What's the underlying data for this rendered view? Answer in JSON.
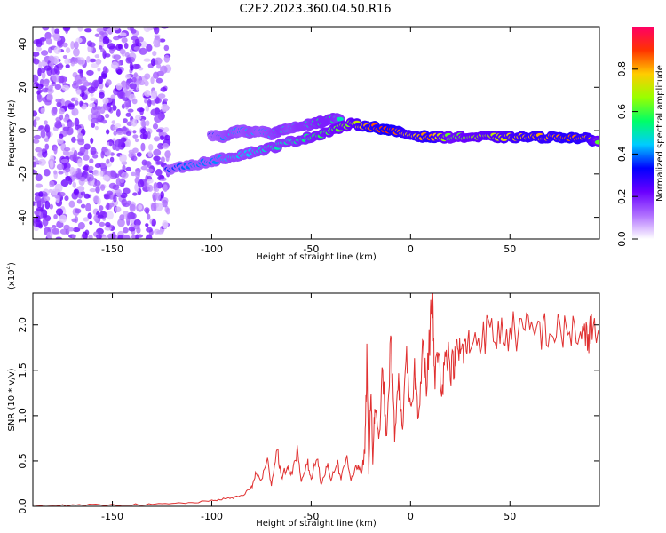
{
  "title": "C2E2.2023.360.04.50.R16",
  "chart_data": [
    {
      "type": "heatmap",
      "name": "spectrogram",
      "xlabel": "Height of straight line (km)",
      "ylabel": "Frequency (Hz)",
      "xlim": [
        -190,
        95
      ],
      "ylim": [
        -50,
        48
      ],
      "xticks": [
        -150,
        -100,
        -50,
        0,
        50
      ],
      "yticks": [
        -40,
        -20,
        0,
        20,
        40
      ],
      "colorbar": {
        "label": "Normalized spectral amplitude",
        "range": [
          0,
          1
        ],
        "ticks": [
          0.0,
          0.2,
          0.4,
          0.6,
          0.8
        ],
        "colors": [
          "#ffffff",
          "#b070ff",
          "#6a00ff",
          "#0000ff",
          "#00ccff",
          "#00ff66",
          "#99ff00",
          "#ffcc00",
          "#ff3300",
          "#ff0066"
        ]
      },
      "ridge": {
        "x": [
          -122,
          -110,
          -100,
          -90,
          -80,
          -70,
          -60,
          -50,
          -40,
          -30,
          -20,
          -10,
          0,
          10,
          20,
          30,
          40,
          50,
          60,
          70,
          80,
          90,
          95
        ],
        "y": [
          -18,
          -16,
          -14,
          -12,
          -10,
          -8,
          -5,
          -3,
          0,
          3,
          2,
          0,
          -2,
          -3,
          -3,
          -3,
          -3,
          -3,
          -3,
          -3,
          -3,
          -4,
          -5
        ],
        "amplitude": [
          0.35,
          0.4,
          0.4,
          0.45,
          0.45,
          0.5,
          0.5,
          0.55,
          0.6,
          0.65,
          0.85,
          0.9,
          0.75,
          0.85,
          0.6,
          0.65,
          0.7,
          0.75,
          0.8,
          0.8,
          0.85,
          0.8,
          0.6
        ]
      },
      "upper_branch": {
        "x": [
          -100,
          -95,
          -90,
          -85,
          -80,
          -75,
          -70,
          -65,
          -60,
          -55,
          -50,
          -45,
          -40,
          -35
        ],
        "y": [
          -2,
          -3,
          -1,
          0,
          -1,
          0,
          -2,
          0,
          1,
          2,
          3,
          4,
          5,
          6
        ],
        "amplitude": [
          0.35,
          0.4,
          0.45,
          0.4,
          0.45,
          0.4,
          0.45,
          0.5,
          0.45,
          0.5,
          0.5,
          0.55,
          0.55,
          0.5
        ]
      },
      "noise_region": {
        "x_range": [
          -190,
          -122
        ],
        "y_range": [
          -50,
          48
        ],
        "amplitude": 0.12
      }
    },
    {
      "type": "line",
      "name": "snr",
      "xlabel": "Height of straight line (km)",
      "ylabel": "SNR (10 * v/v)",
      "y_multiplier_label": "(x10^4)",
      "xlim": [
        -190,
        95
      ],
      "ylim": [
        0,
        2.35
      ],
      "xticks": [
        -150,
        -100,
        -50,
        0,
        50
      ],
      "yticks": [
        0.0,
        0.5,
        1.0,
        1.5,
        2.0
      ],
      "line_color": "#e03030",
      "series": [
        {
          "x": [
            -190,
            -180,
            -170,
            -160,
            -150,
            -140,
            -130,
            -120,
            -110,
            -100,
            -95,
            -90,
            -85,
            -80,
            -78,
            -75,
            -72,
            -70,
            -67,
            -65,
            -62,
            -60,
            -57,
            -55,
            -52,
            -50,
            -47,
            -45,
            -42,
            -40,
            -37,
            -35,
            -32,
            -30,
            -27,
            -25,
            -23,
            -22,
            -21,
            -20,
            -19,
            -18,
            -16,
            -14,
            -12,
            -10,
            -8,
            -6,
            -4,
            -2,
            0,
            2,
            4,
            6,
            8,
            10,
            11,
            12,
            14,
            16,
            18,
            20,
            22,
            24,
            26,
            28,
            30,
            35,
            40,
            45,
            50,
            55,
            60,
            65,
            70,
            75,
            80,
            85,
            88,
            90,
            92,
            95
          ],
          "y": [
            0.01,
            0.01,
            0.01,
            0.015,
            0.015,
            0.02,
            0.02,
            0.03,
            0.04,
            0.06,
            0.08,
            0.09,
            0.12,
            0.2,
            0.35,
            0.3,
            0.5,
            0.25,
            0.65,
            0.3,
            0.45,
            0.35,
            0.6,
            0.25,
            0.5,
            0.3,
            0.55,
            0.25,
            0.45,
            0.3,
            0.5,
            0.3,
            0.55,
            0.3,
            0.45,
            0.35,
            0.6,
            1.6,
            0.4,
            1.3,
            0.5,
            1.1,
            0.7,
            1.5,
            0.7,
            1.85,
            0.8,
            1.4,
            0.9,
            1.6,
            1.0,
            1.5,
            1.0,
            1.8,
            1.3,
            2.0,
            2.35,
            1.4,
            1.7,
            1.3,
            1.8,
            1.5,
            1.6,
            1.7,
            1.7,
            1.75,
            1.8,
            1.9,
            1.9,
            1.9,
            1.92,
            1.93,
            1.9,
            1.95,
            1.92,
            1.9,
            1.95,
            1.9,
            1.8,
            1.95,
            1.9,
            1.85
          ]
        }
      ]
    }
  ]
}
